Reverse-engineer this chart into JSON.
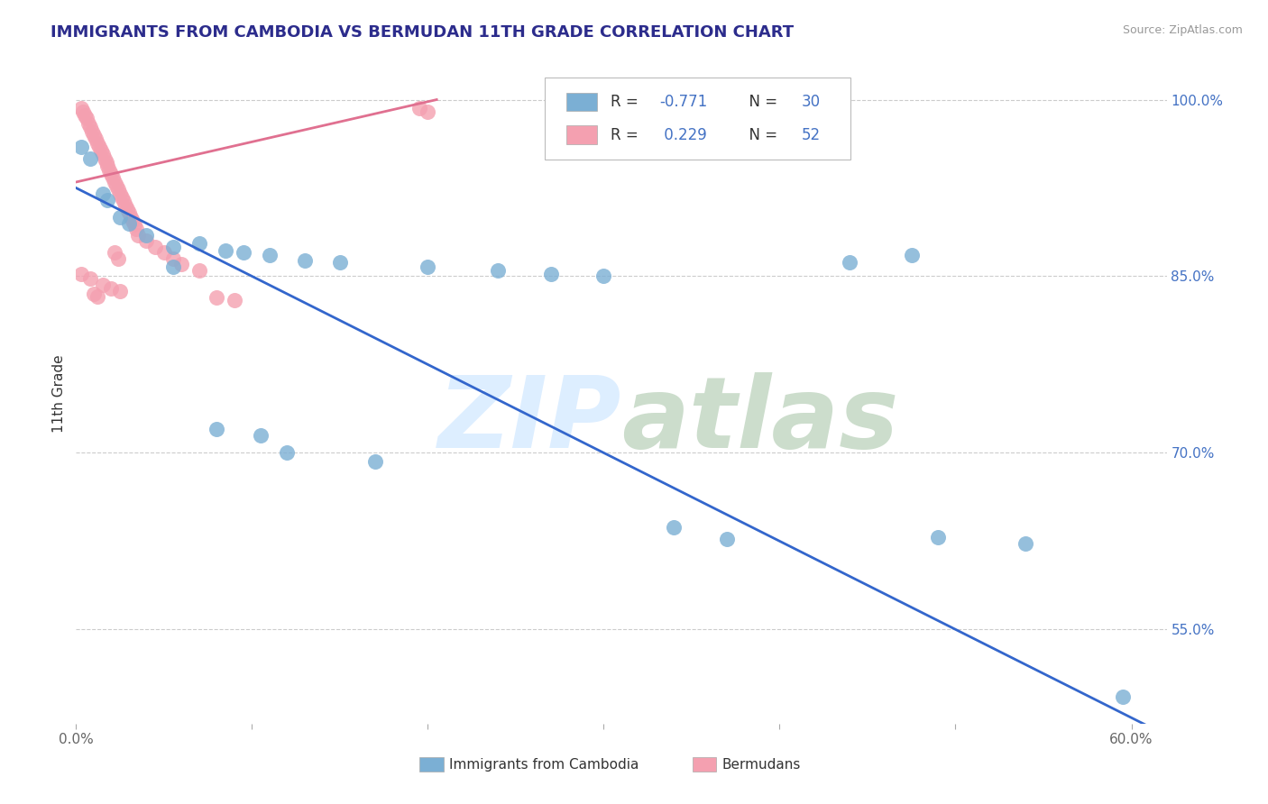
{
  "title": "IMMIGRANTS FROM CAMBODIA VS BERMUDAN 11TH GRADE CORRELATION CHART",
  "source_text": "Source: ZipAtlas.com",
  "ylabel": "11th Grade",
  "xlim": [
    0.0,
    0.62
  ],
  "ylim": [
    0.47,
    1.03
  ],
  "xtick_positions": [
    0.0,
    0.1,
    0.2,
    0.3,
    0.4,
    0.5,
    0.6
  ],
  "xticklabels": [
    "0.0%",
    "",
    "",
    "",
    "",
    "",
    "60.0%"
  ],
  "ytick_positions": [
    0.55,
    0.7,
    0.85,
    1.0
  ],
  "yticklabels": [
    "55.0%",
    "70.0%",
    "85.0%",
    "100.0%"
  ],
  "grid_color": "#cccccc",
  "background_color": "#ffffff",
  "blue_color": "#7bafd4",
  "pink_color": "#f4a0b0",
  "blue_line_color": "#3366cc",
  "pink_line_color": "#e07090",
  "watermark_zip_color": "#ddeeff",
  "watermark_atlas_color": "#ccddcc",
  "blue_dots": [
    [
      0.003,
      0.96
    ],
    [
      0.008,
      0.95
    ],
    [
      0.015,
      0.92
    ],
    [
      0.018,
      0.915
    ],
    [
      0.025,
      0.9
    ],
    [
      0.03,
      0.895
    ],
    [
      0.04,
      0.885
    ],
    [
      0.055,
      0.875
    ],
    [
      0.07,
      0.878
    ],
    [
      0.085,
      0.872
    ],
    [
      0.095,
      0.87
    ],
    [
      0.11,
      0.868
    ],
    [
      0.13,
      0.863
    ],
    [
      0.15,
      0.862
    ],
    [
      0.2,
      0.858
    ],
    [
      0.24,
      0.855
    ],
    [
      0.27,
      0.852
    ],
    [
      0.3,
      0.85
    ],
    [
      0.08,
      0.72
    ],
    [
      0.105,
      0.715
    ],
    [
      0.12,
      0.7
    ],
    [
      0.17,
      0.693
    ],
    [
      0.34,
      0.637
    ],
    [
      0.37,
      0.627
    ],
    [
      0.49,
      0.628
    ],
    [
      0.54,
      0.623
    ],
    [
      0.595,
      0.493
    ],
    [
      0.44,
      0.862
    ],
    [
      0.475,
      0.868
    ],
    [
      0.055,
      0.858
    ]
  ],
  "pink_dots": [
    [
      0.003,
      0.993
    ],
    [
      0.004,
      0.99
    ],
    [
      0.005,
      0.987
    ],
    [
      0.006,
      0.984
    ],
    [
      0.007,
      0.98
    ],
    [
      0.008,
      0.977
    ],
    [
      0.009,
      0.973
    ],
    [
      0.01,
      0.97
    ],
    [
      0.011,
      0.967
    ],
    [
      0.012,
      0.963
    ],
    [
      0.013,
      0.96
    ],
    [
      0.014,
      0.957
    ],
    [
      0.015,
      0.954
    ],
    [
      0.016,
      0.95
    ],
    [
      0.017,
      0.947
    ],
    [
      0.018,
      0.944
    ],
    [
      0.019,
      0.94
    ],
    [
      0.02,
      0.937
    ],
    [
      0.021,
      0.934
    ],
    [
      0.022,
      0.93
    ],
    [
      0.023,
      0.927
    ],
    [
      0.024,
      0.924
    ],
    [
      0.025,
      0.92
    ],
    [
      0.026,
      0.917
    ],
    [
      0.027,
      0.914
    ],
    [
      0.028,
      0.91
    ],
    [
      0.029,
      0.907
    ],
    [
      0.03,
      0.904
    ],
    [
      0.031,
      0.9
    ],
    [
      0.032,
      0.897
    ],
    [
      0.033,
      0.894
    ],
    [
      0.034,
      0.89
    ],
    [
      0.04,
      0.88
    ],
    [
      0.045,
      0.875
    ],
    [
      0.05,
      0.87
    ],
    [
      0.055,
      0.865
    ],
    [
      0.06,
      0.86
    ],
    [
      0.07,
      0.855
    ],
    [
      0.003,
      0.852
    ],
    [
      0.008,
      0.848
    ],
    [
      0.015,
      0.843
    ],
    [
      0.02,
      0.84
    ],
    [
      0.025,
      0.837
    ],
    [
      0.08,
      0.832
    ],
    [
      0.09,
      0.83
    ],
    [
      0.195,
      0.993
    ],
    [
      0.2,
      0.99
    ],
    [
      0.022,
      0.87
    ],
    [
      0.024,
      0.865
    ],
    [
      0.01,
      0.835
    ],
    [
      0.012,
      0.833
    ],
    [
      0.035,
      0.885
    ]
  ],
  "blue_trendline_x": [
    0.0,
    0.62
  ],
  "blue_trendline_y": [
    0.925,
    0.46
  ],
  "pink_trendline_x": [
    0.0,
    0.205
  ],
  "pink_trendline_y": [
    0.93,
    1.0
  ]
}
